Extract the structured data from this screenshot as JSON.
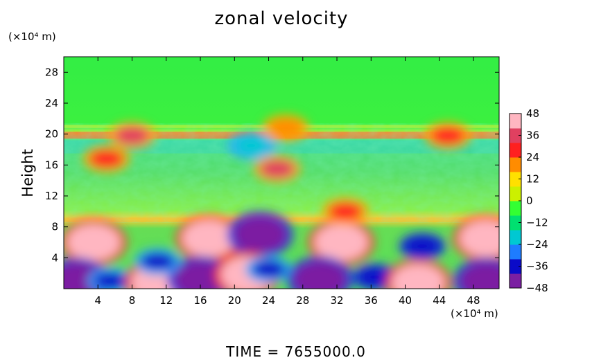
{
  "chart_data": {
    "type": "heatmap",
    "title": "zonal velocity",
    "ylabel": "Height",
    "x_unit": "(×10⁴ m)",
    "y_unit": "(×10⁴ m)",
    "xlim": [
      0,
      51
    ],
    "ylim": [
      0,
      30
    ],
    "x_ticks": [
      4,
      8,
      12,
      16,
      20,
      24,
      28,
      32,
      36,
      40,
      44,
      48
    ],
    "y_ticks": [
      4,
      8,
      12,
      16,
      20,
      24,
      28
    ],
    "colorbar": {
      "range": [
        -48,
        48
      ],
      "ticks": [
        48,
        36,
        24,
        12,
        0,
        -12,
        -24,
        -36,
        -48
      ],
      "colors": [
        "#7b1fa2",
        "#0a0ac8",
        "#1e7cff",
        "#00c8d2",
        "#00e070",
        "#33ff33",
        "#ccf000",
        "#ffe000",
        "#ff8c00",
        "#ff2020",
        "#e04060",
        "#ffb6c1"
      ]
    },
    "features": [
      {
        "x": 3.5,
        "y": 6.0,
        "value": 48
      },
      {
        "x": 1.5,
        "y": 1.0,
        "value": -48
      },
      {
        "x": 5.5,
        "y": 1.0,
        "value": -40
      },
      {
        "x": 11.0,
        "y": 0.8,
        "value": 45
      },
      {
        "x": 17.0,
        "y": 6.5,
        "value": 46
      },
      {
        "x": 16.0,
        "y": 1.2,
        "value": -44
      },
      {
        "x": 11.0,
        "y": 3.5,
        "value": -40
      },
      {
        "x": 23.0,
        "y": 7.0,
        "value": -48
      },
      {
        "x": 21.5,
        "y": 1.8,
        "value": 45
      },
      {
        "x": 24.0,
        "y": 2.5,
        "value": -36
      },
      {
        "x": 32.5,
        "y": 6.0,
        "value": 48
      },
      {
        "x": 30.0,
        "y": 1.2,
        "value": -48
      },
      {
        "x": 36.5,
        "y": 1.5,
        "value": -42
      },
      {
        "x": 41.5,
        "y": 0.8,
        "value": 46
      },
      {
        "x": 42.0,
        "y": 5.5,
        "value": -42
      },
      {
        "x": 49.5,
        "y": 6.5,
        "value": 46
      },
      {
        "x": 49.5,
        "y": 1.0,
        "value": -48
      },
      {
        "x": 8.0,
        "y": 19.8,
        "value": 38
      },
      {
        "x": 45.0,
        "y": 19.8,
        "value": 30
      },
      {
        "x": 5.0,
        "y": 16.8,
        "value": 30
      },
      {
        "x": 25.0,
        "y": 15.5,
        "value": 36
      },
      {
        "x": 22.0,
        "y": 18.5,
        "value": -18
      },
      {
        "x": 33.0,
        "y": 10.0,
        "value": 32
      },
      {
        "x": 26.0,
        "y": 20.8,
        "value": 18
      }
    ]
  },
  "footer": {
    "time_label": "TIME  =  7655000.0"
  }
}
